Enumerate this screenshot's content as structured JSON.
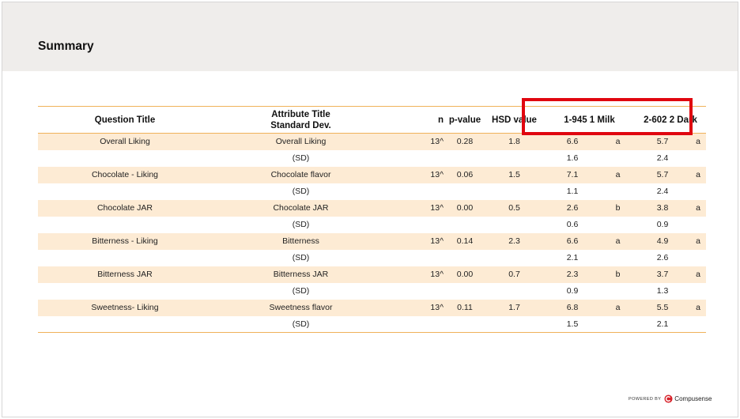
{
  "page": {
    "title": "Summary"
  },
  "table": {
    "headers": {
      "question": "Question Title",
      "attribute_line1": "Attribute Title",
      "attribute_line2": "Standard Dev.",
      "n": "n",
      "pvalue": "p-value",
      "hsd": "HSD value",
      "product1": "1-945 1 Milk",
      "product2": "2-602 2 Dark"
    },
    "rows": [
      {
        "question": "Overall Liking",
        "attribute": "Overall Liking",
        "n": "13^",
        "p": "0.28",
        "hsd": "1.8",
        "v1": "6.6",
        "l1": "a",
        "v2": "5.7",
        "l2": "a"
      },
      {
        "question": "",
        "attribute": "(SD)",
        "n": "",
        "p": "",
        "hsd": "",
        "v1": "1.6",
        "l1": "",
        "v2": "2.4",
        "l2": ""
      },
      {
        "question": "Chocolate - Liking",
        "attribute": "Chocolate flavor",
        "n": "13^",
        "p": "0.06",
        "hsd": "1.5",
        "v1": "7.1",
        "l1": "a",
        "v2": "5.7",
        "l2": "a"
      },
      {
        "question": "",
        "attribute": "(SD)",
        "n": "",
        "p": "",
        "hsd": "",
        "v1": "1.1",
        "l1": "",
        "v2": "2.4",
        "l2": ""
      },
      {
        "question": "Chocolate JAR",
        "attribute": "Chocolate JAR",
        "n": "13^",
        "p": "0.00",
        "hsd": "0.5",
        "v1": "2.6",
        "l1": "b",
        "v2": "3.8",
        "l2": "a"
      },
      {
        "question": "",
        "attribute": "(SD)",
        "n": "",
        "p": "",
        "hsd": "",
        "v1": "0.6",
        "l1": "",
        "v2": "0.9",
        "l2": ""
      },
      {
        "question": "Bitterness - Liking",
        "attribute": "Bitterness",
        "n": "13^",
        "p": "0.14",
        "hsd": "2.3",
        "v1": "6.6",
        "l1": "a",
        "v2": "4.9",
        "l2": "a"
      },
      {
        "question": "",
        "attribute": "(SD)",
        "n": "",
        "p": "",
        "hsd": "",
        "v1": "2.1",
        "l1": "",
        "v2": "2.6",
        "l2": ""
      },
      {
        "question": "Bitterness JAR",
        "attribute": "Bitterness JAR",
        "n": "13^",
        "p": "0.00",
        "hsd": "0.7",
        "v1": "2.3",
        "l1": "b",
        "v2": "3.7",
        "l2": "a"
      },
      {
        "question": "",
        "attribute": "(SD)",
        "n": "",
        "p": "",
        "hsd": "",
        "v1": "0.9",
        "l1": "",
        "v2": "1.3",
        "l2": ""
      },
      {
        "question": "Sweetness- Liking",
        "attribute": "Sweetness flavor",
        "n": "13^",
        "p": "0.11",
        "hsd": "1.7",
        "v1": "6.8",
        "l1": "a",
        "v2": "5.5",
        "l2": "a"
      },
      {
        "question": "",
        "attribute": "(SD)",
        "n": "",
        "p": "",
        "hsd": "",
        "v1": "1.5",
        "l1": "",
        "v2": "2.1",
        "l2": ""
      }
    ]
  },
  "colors": {
    "header_band": "#efedeb",
    "row_shade": "#fdebd4",
    "rule": "#f0b25a",
    "highlight_box": "#e0060f"
  },
  "footer": {
    "powered_by": "POWERED BY",
    "brand": "Compusense",
    "logo_icon": "compusense-logo-icon"
  }
}
